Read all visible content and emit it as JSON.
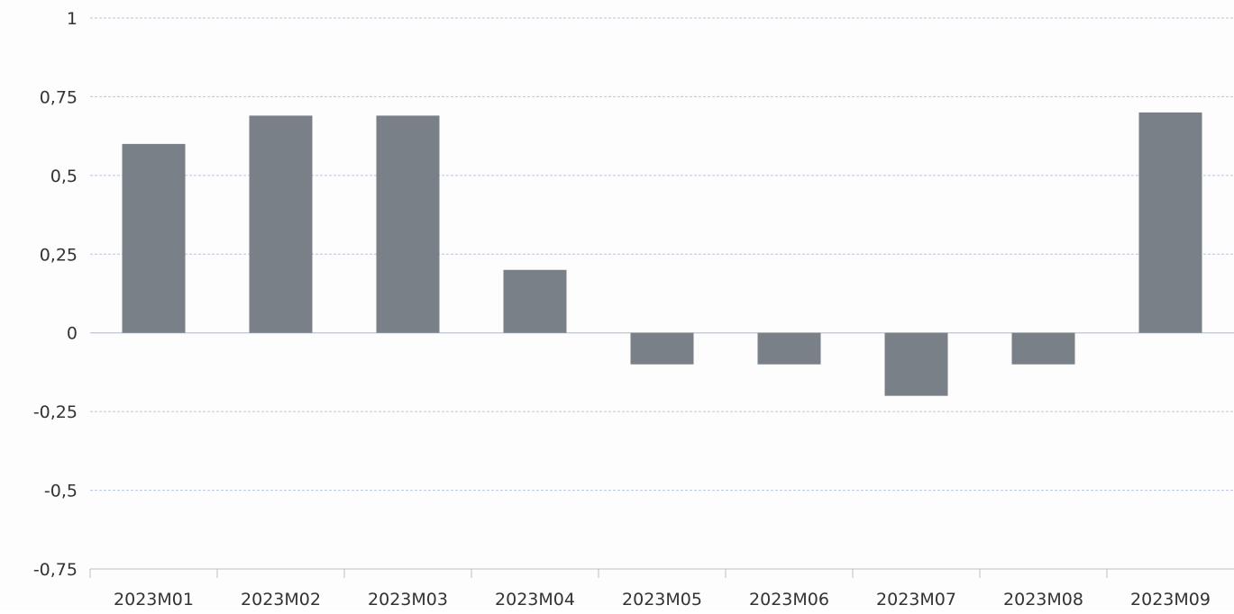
{
  "chart_data": {
    "type": "bar",
    "title": "",
    "xlabel": "",
    "ylabel": "",
    "categories": [
      "2023M01",
      "2023M02",
      "2023M03",
      "2023M04",
      "2023M05",
      "2023M06",
      "2023M07",
      "2023M08",
      "2023M09"
    ],
    "series": [
      {
        "values": [
          0.6,
          0.69,
          0.69,
          0.2,
          -0.1,
          -0.1,
          -0.2,
          -0.1,
          0.7
        ]
      }
    ],
    "ylim": [
      -0.75,
      1
    ],
    "y_ticks": [
      {
        "value": 1,
        "label": "1"
      },
      {
        "value": 0.75,
        "label": "0,75"
      },
      {
        "value": 0.5,
        "label": "0,5"
      },
      {
        "value": 0.25,
        "label": "0,25"
      },
      {
        "value": 0,
        "label": "0"
      },
      {
        "value": -0.25,
        "label": "-0,25"
      },
      {
        "value": -0.5,
        "label": "-0,5"
      },
      {
        "value": -0.75,
        "label": "-0,75"
      }
    ],
    "grid": true,
    "legend": "none",
    "colors": {
      "bar": "#7a8088",
      "grid": "#b8c4e0",
      "text": "#333333",
      "axis": "#bfbfbf"
    }
  }
}
